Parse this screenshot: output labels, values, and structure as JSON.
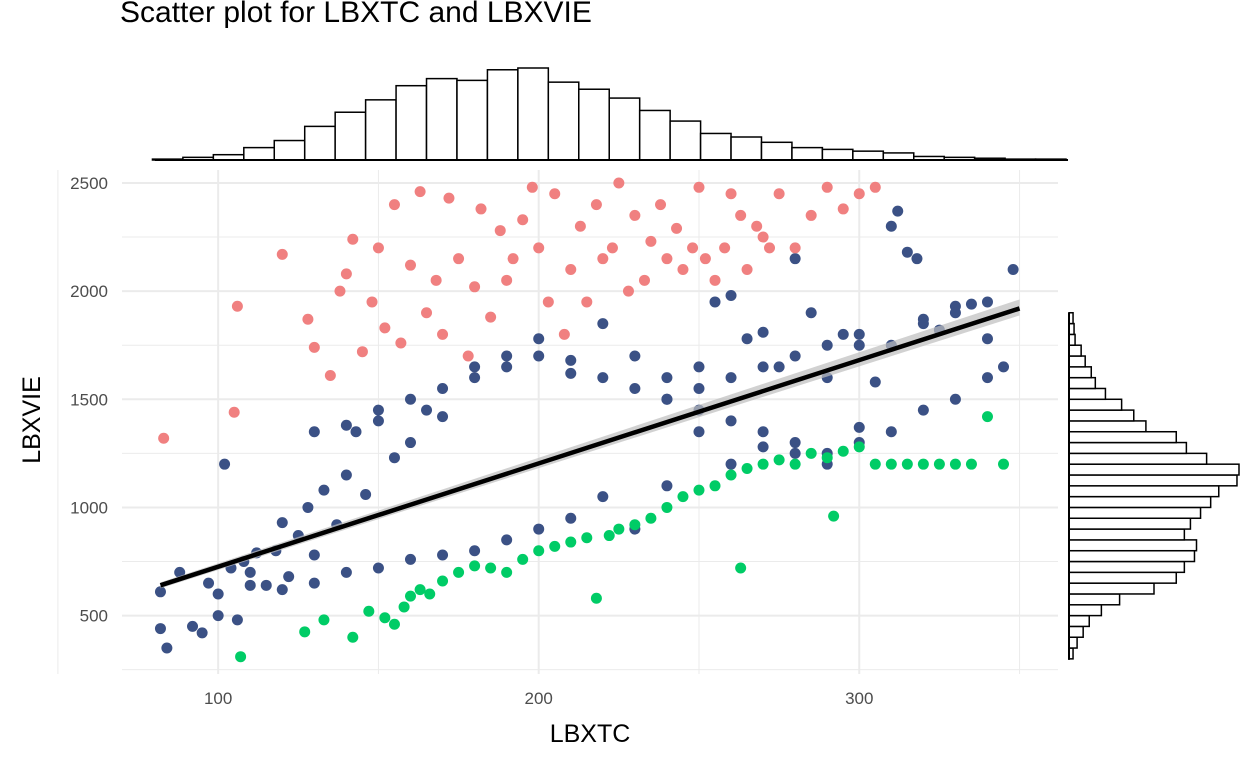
{
  "chart_data": {
    "type": "scatter",
    "title": "Scatter plot for LBXTC and LBXVIE",
    "xlabel": "LBXTC",
    "ylabel": "LBXVIE",
    "xlim": [
      70,
      362
    ],
    "ylim": [
      230,
      2560
    ],
    "x_ticks": [
      100,
      200,
      300
    ],
    "y_ticks": [
      500,
      1000,
      1500,
      2000,
      2500
    ],
    "grid": true,
    "legend": "none",
    "colors": {
      "main": "#3b5185",
      "high": "#f08080",
      "low": "#00cc66",
      "fit": "#000000",
      "grid": "#ebebeb"
    },
    "series": [
      {
        "group": "main",
        "x": [
          82,
          82,
          84,
          88,
          92,
          95,
          97,
          100,
          102,
          104,
          106,
          108,
          110,
          112,
          115,
          118,
          120,
          122,
          125,
          128,
          130,
          133,
          137,
          140,
          143,
          146,
          150,
          155,
          160,
          165,
          170,
          180,
          190,
          200,
          210,
          220,
          230,
          240,
          250,
          255,
          260,
          265,
          270,
          275,
          280,
          285,
          290,
          295,
          300,
          305,
          310,
          315,
          320,
          325,
          330,
          335,
          340,
          345,
          348,
          312,
          318,
          300,
          290,
          280,
          270,
          260,
          250,
          240,
          230,
          220,
          210,
          200,
          190,
          180,
          170,
          160,
          150,
          140,
          130,
          120,
          110,
          100,
          240,
          250,
          260,
          270,
          280,
          290,
          300,
          310,
          320,
          330,
          340,
          130,
          140,
          150,
          160,
          170,
          180,
          190,
          200,
          210,
          220,
          230,
          240,
          250,
          260,
          270,
          280,
          290,
          300,
          310,
          320,
          330,
          340
        ],
        "y": [
          610,
          440,
          350,
          700,
          450,
          420,
          650,
          500,
          1200,
          720,
          480,
          750,
          700,
          790,
          640,
          800,
          930,
          680,
          870,
          1000,
          780,
          1080,
          920,
          1150,
          1350,
          1060,
          1400,
          1230,
          1300,
          1450,
          1420,
          1650,
          1700,
          1780,
          1680,
          1850,
          1700,
          1600,
          1650,
          1950,
          1980,
          1780,
          1810,
          1650,
          2150,
          1900,
          1600,
          1800,
          1750,
          1580,
          2300,
          2180,
          1870,
          1820,
          1930,
          1940,
          1780,
          1650,
          2100,
          2370,
          2150,
          1370,
          1200,
          1250,
          1280,
          1200,
          1350,
          1100,
          900,
          1050,
          950,
          900,
          850,
          800,
          780,
          760,
          720,
          700,
          650,
          620,
          640,
          600,
          1500,
          1550,
          1600,
          1650,
          1700,
          1750,
          1800,
          1750,
          1850,
          1900,
          1950,
          1350,
          1380,
          1450,
          1500,
          1550,
          1600,
          1650,
          1700,
          1620,
          1600,
          1550,
          1500,
          1450,
          1400,
          1350,
          1300,
          1250,
          1300,
          1350,
          1450,
          1500,
          1600
        ]
      },
      {
        "group": "high",
        "x": [
          83,
          105,
          106,
          120,
          128,
          130,
          135,
          138,
          140,
          142,
          145,
          148,
          150,
          152,
          155,
          157,
          160,
          163,
          165,
          168,
          170,
          172,
          175,
          178,
          180,
          182,
          185,
          188,
          190,
          192,
          195,
          198,
          200,
          203,
          205,
          208,
          210,
          213,
          215,
          218,
          220,
          223,
          225,
          228,
          230,
          233,
          235,
          238,
          240,
          243,
          245,
          248,
          250,
          252,
          255,
          258,
          260,
          263,
          265,
          268,
          270,
          272,
          275,
          280,
          285,
          290,
          295,
          300,
          305
        ],
        "y": [
          1320,
          1440,
          1930,
          2170,
          1870,
          1740,
          1610,
          2000,
          2080,
          2240,
          1720,
          1950,
          2200,
          1830,
          2400,
          1760,
          2120,
          2460,
          1900,
          2050,
          1800,
          2430,
          2150,
          1700,
          2020,
          2380,
          1880,
          2280,
          2050,
          2150,
          2330,
          2480,
          2200,
          1950,
          2450,
          1800,
          2100,
          2300,
          1950,
          2400,
          2150,
          2200,
          2500,
          2000,
          2350,
          2050,
          2230,
          2400,
          2150,
          2290,
          2100,
          2200,
          2480,
          2150,
          2050,
          2200,
          2450,
          2350,
          2100,
          2300,
          2250,
          2200,
          2450,
          2200,
          2350,
          2480,
          2380,
          2450,
          2480
        ]
      },
      {
        "group": "low",
        "x": [
          107,
          127,
          133,
          142,
          147,
          152,
          155,
          158,
          160,
          163,
          166,
          170,
          175,
          180,
          185,
          190,
          195,
          200,
          205,
          210,
          215,
          218,
          222,
          225,
          230,
          235,
          240,
          245,
          250,
          255,
          260,
          263,
          265,
          270,
          275,
          280,
          285,
          290,
          292,
          295,
          300,
          305,
          310,
          315,
          320,
          325,
          330,
          335,
          340,
          345
        ],
        "y": [
          310,
          425,
          480,
          400,
          520,
          490,
          460,
          540,
          590,
          620,
          600,
          660,
          700,
          730,
          720,
          700,
          760,
          800,
          820,
          840,
          860,
          580,
          870,
          900,
          920,
          950,
          1000,
          1050,
          1080,
          1100,
          1150,
          720,
          1180,
          1200,
          1220,
          1200,
          1250,
          1230,
          960,
          1260,
          1280,
          1200,
          1200,
          1200,
          1200,
          1200,
          1200,
          1200,
          1420,
          1200
        ]
      }
    ],
    "fit_line": {
      "x": [
        82,
        350
      ],
      "y": [
        640,
        1920
      ]
    },
    "top_histogram": {
      "bin_start": 70,
      "bin_width": 9.5,
      "counts": [
        0,
        1,
        3,
        6,
        14,
        22,
        38,
        54,
        68,
        84,
        92,
        90,
        102,
        104,
        88,
        80,
        70,
        56,
        44,
        30,
        26,
        20,
        14,
        12,
        10,
        8,
        4,
        3,
        2,
        1,
        1
      ]
    },
    "right_histogram": {
      "bin_start": 300,
      "bin_width": 50,
      "counts": [
        4,
        8,
        14,
        20,
        32,
        50,
        84,
        106,
        114,
        124,
        126,
        114,
        120,
        130,
        140,
        148,
        166,
        168,
        136,
        116,
        106,
        76,
        64,
        52,
        36,
        26,
        22,
        16,
        12,
        6,
        5,
        4
      ]
    }
  }
}
